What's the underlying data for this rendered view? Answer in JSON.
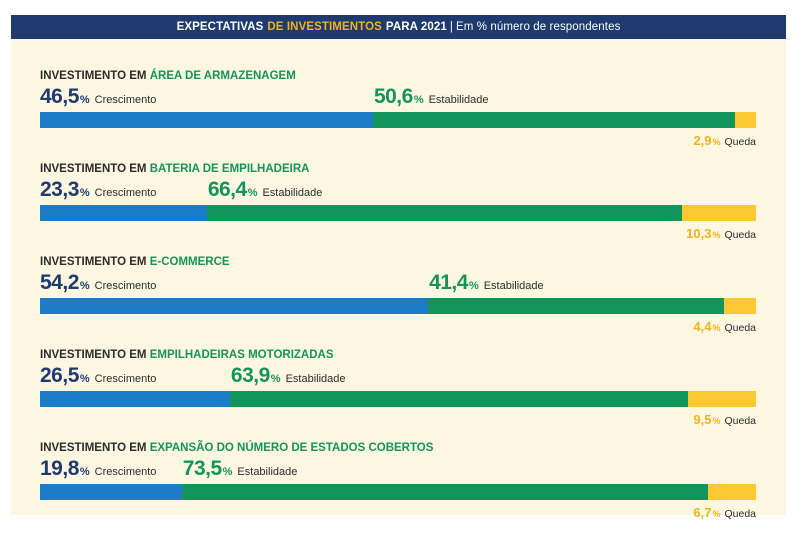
{
  "header": {
    "part1": "EXPECTATIVAS",
    "part2": "DE INVESTIMENTOS",
    "part3": "PARA 2021",
    "separator": "|",
    "part4": "Em % número de respondentes"
  },
  "colors": {
    "header_bg": "#1e3a6e",
    "panel_bg": "#fdf7e2",
    "crescimento": "#1d7cc8",
    "estabilidade": "#12955a",
    "queda": "#fbc733",
    "highlight_text": "#f2b21c"
  },
  "chart_data": {
    "type": "bar",
    "stacked": true,
    "orientation": "horizontal",
    "unit": "%",
    "xlim": [
      0,
      100
    ],
    "title_prefix": "INVESTIMENTO EM",
    "series_labels": {
      "crescimento": "Crescimento",
      "estabilidade": "Estabilidade",
      "queda": "Queda"
    },
    "categories": [
      {
        "prefix": "INVESTIMENTO EM",
        "name": "ÁREA DE ARMAZENAGEM",
        "values": [
          46.5,
          50.6,
          2.9
        ],
        "labels": [
          "46,5",
          "50,6",
          "2,9"
        ]
      },
      {
        "prefix": "INVESTIMENTO EM",
        "name": "BATERIA DE EMPILHADEIRA",
        "values": [
          23.3,
          66.4,
          10.3
        ],
        "labels": [
          "23,3",
          "66,4",
          "10,3"
        ]
      },
      {
        "prefix": "INVESTIMENTO EM",
        "name": "E-COMMERCE",
        "values": [
          54.2,
          41.4,
          4.4
        ],
        "labels": [
          "54,2",
          "41,4",
          "4,4"
        ]
      },
      {
        "prefix": "INVESTIMENTO EM",
        "name": "EMPILHADEIRAS MOTORIZADAS",
        "values": [
          26.5,
          63.9,
          9.5
        ],
        "labels": [
          "26,5",
          "63,9",
          "9,5"
        ]
      },
      {
        "prefix": "INVESTIMENTO EM",
        "name": "EXPANSÃO DO NÚMERO DE ESTADOS COBERTOS",
        "values": [
          19.8,
          73.5,
          6.7
        ],
        "labels": [
          "19,8",
          "73,5",
          "6,7"
        ]
      }
    ],
    "percent_sign": "%"
  }
}
